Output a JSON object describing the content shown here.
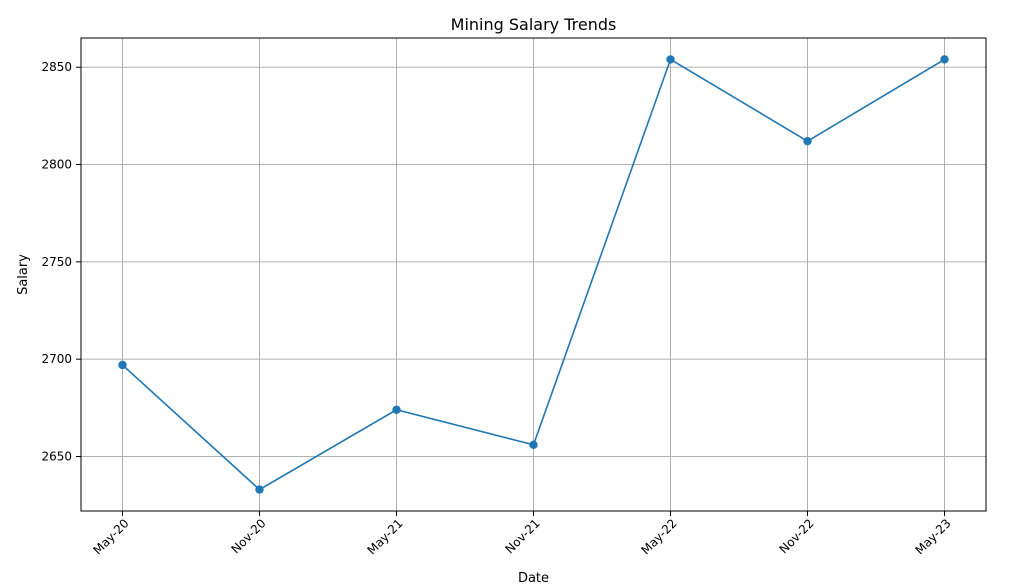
{
  "chart_data": {
    "type": "line",
    "title": "Mining Salary Trends",
    "xlabel": "Date",
    "ylabel": "Salary",
    "categories": [
      "May-20",
      "Nov-20",
      "May-21",
      "Nov-21",
      "May-22",
      "Nov-22",
      "May-23"
    ],
    "series": [
      {
        "values": [
          2697,
          2633,
          2674,
          2656,
          2854,
          2812,
          2854
        ],
        "color": "#1f77b4",
        "marker": "circle"
      }
    ],
    "ylim": [
      2622,
      2865
    ],
    "yticks": [
      2650,
      2700,
      2750,
      2800,
      2850
    ],
    "grid": true,
    "x_tick_rotation": 45
  }
}
